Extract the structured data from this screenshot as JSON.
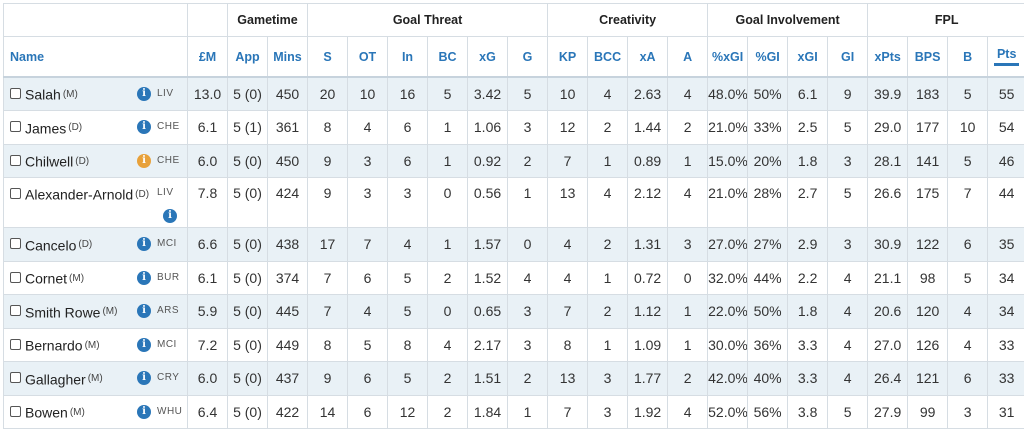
{
  "groups": [
    "",
    "",
    "Gametime",
    "Goal Threat",
    "Creativity",
    "Goal Involvement",
    "FPL"
  ],
  "columns": [
    "Name",
    "£M",
    "App",
    "Mins",
    "S",
    "OT",
    "In",
    "BC",
    "xG",
    "G",
    "KP",
    "BCC",
    "xA",
    "A",
    "%xGI",
    "%GI",
    "xGI",
    "GI",
    "xPts",
    "BPS",
    "B",
    "Pts"
  ],
  "sorted_column": "Pts",
  "colors": {
    "header_text": "#2a76b8",
    "info_icon": "#2a76b8",
    "info_icon_warning": "#e8a13a",
    "row_alt": "#e9f1f6"
  },
  "info_glyph": "i",
  "players": [
    {
      "name": "Salah",
      "pos": "(M)",
      "team": "LIV",
      "icon": "info-icon",
      "stats": [
        "13.0",
        "5 (0)",
        "450",
        "20",
        "10",
        "16",
        "5",
        "3.42",
        "5",
        "10",
        "4",
        "2.63",
        "4",
        "48.0%",
        "50%",
        "6.1",
        "9",
        "39.9",
        "183",
        "5",
        "55"
      ]
    },
    {
      "name": "James",
      "pos": "(D)",
      "team": "CHE",
      "icon": "info-icon",
      "stats": [
        "6.1",
        "5 (1)",
        "361",
        "8",
        "4",
        "6",
        "1",
        "1.06",
        "3",
        "12",
        "2",
        "1.44",
        "2",
        "21.0%",
        "33%",
        "2.5",
        "5",
        "29.0",
        "177",
        "10",
        "54"
      ]
    },
    {
      "name": "Chilwell",
      "pos": "(D)",
      "team": "CHE",
      "icon": "warning-info-icon",
      "stats": [
        "6.0",
        "5 (0)",
        "450",
        "9",
        "3",
        "6",
        "1",
        "0.92",
        "2",
        "7",
        "1",
        "0.89",
        "1",
        "15.0%",
        "20%",
        "1.8",
        "3",
        "28.1",
        "141",
        "5",
        "46"
      ]
    },
    {
      "name": "Alexander-Arnold",
      "pos": "(D)",
      "team": "LIV",
      "icon": "info-icon",
      "stats": [
        "7.8",
        "5 (0)",
        "424",
        "9",
        "3",
        "3",
        "0",
        "0.56",
        "1",
        "13",
        "4",
        "2.12",
        "4",
        "21.0%",
        "28%",
        "2.7",
        "5",
        "26.6",
        "175",
        "7",
        "44"
      ]
    },
    {
      "name": "Cancelo",
      "pos": "(D)",
      "team": "MCI",
      "icon": "info-icon",
      "stats": [
        "6.6",
        "5 (0)",
        "438",
        "17",
        "7",
        "4",
        "1",
        "1.57",
        "0",
        "4",
        "2",
        "1.31",
        "3",
        "27.0%",
        "27%",
        "2.9",
        "3",
        "30.9",
        "122",
        "6",
        "35"
      ]
    },
    {
      "name": "Cornet",
      "pos": "(M)",
      "team": "BUR",
      "icon": "info-icon",
      "stats": [
        "6.1",
        "5 (0)",
        "374",
        "7",
        "6",
        "5",
        "2",
        "1.52",
        "4",
        "4",
        "1",
        "0.72",
        "0",
        "32.0%",
        "44%",
        "2.2",
        "4",
        "21.1",
        "98",
        "5",
        "34"
      ]
    },
    {
      "name": "Smith Rowe",
      "pos": "(M)",
      "team": "ARS",
      "icon": "info-icon",
      "stats": [
        "5.9",
        "5 (0)",
        "445",
        "7",
        "4",
        "5",
        "0",
        "0.65",
        "3",
        "7",
        "2",
        "1.12",
        "1",
        "22.0%",
        "50%",
        "1.8",
        "4",
        "20.6",
        "120",
        "4",
        "34"
      ]
    },
    {
      "name": "Bernardo",
      "pos": "(M)",
      "team": "MCI",
      "icon": "info-icon",
      "stats": [
        "7.2",
        "5 (0)",
        "449",
        "8",
        "5",
        "8",
        "4",
        "2.17",
        "3",
        "8",
        "1",
        "1.09",
        "1",
        "30.0%",
        "36%",
        "3.3",
        "4",
        "27.0",
        "126",
        "4",
        "33"
      ]
    },
    {
      "name": "Gallagher",
      "pos": "(M)",
      "team": "CRY",
      "icon": "info-icon",
      "stats": [
        "6.0",
        "5 (0)",
        "437",
        "9",
        "6",
        "5",
        "2",
        "1.51",
        "2",
        "13",
        "3",
        "1.77",
        "2",
        "42.0%",
        "40%",
        "3.3",
        "4",
        "26.4",
        "121",
        "6",
        "33"
      ]
    },
    {
      "name": "Bowen",
      "pos": "(M)",
      "team": "WHU",
      "icon": "info-icon",
      "stats": [
        "6.4",
        "5 (0)",
        "422",
        "14",
        "6",
        "12",
        "2",
        "1.84",
        "1",
        "7",
        "3",
        "1.92",
        "4",
        "52.0%",
        "56%",
        "3.8",
        "5",
        "27.9",
        "99",
        "3",
        "31"
      ]
    }
  ]
}
